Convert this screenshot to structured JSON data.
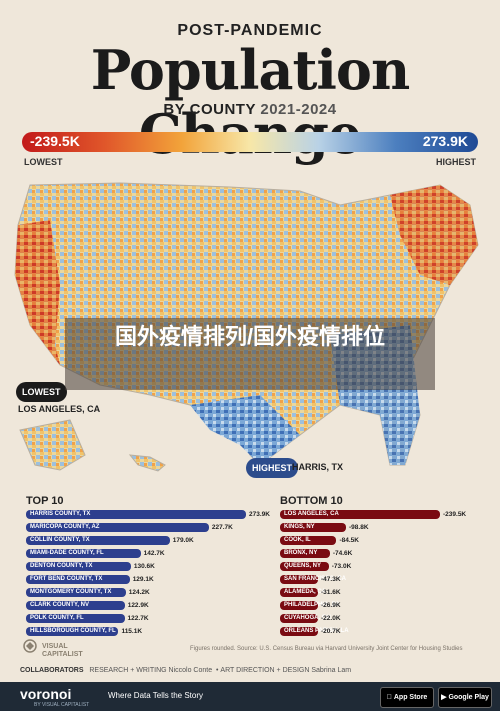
{
  "header": {
    "kicker": "POST-PANDEMIC",
    "title": "Population Change",
    "subtitle_prefix": "BY COUNTY",
    "subtitle_years": "2021-2024"
  },
  "scale": {
    "min_label": "-239.5K",
    "max_label": "273.9K",
    "low_caption": "LOWEST",
    "high_caption": "HIGHEST",
    "colors": {
      "low": "#c21a1a",
      "mid": "#f7e7a8",
      "high": "#1f4a95"
    }
  },
  "map": {
    "lowest_pin": "LOWEST",
    "lowest_place": "LOS ANGELES, CA",
    "highest_pin": "HIGHEST",
    "highest_place": "HARRIS, TX"
  },
  "overlay": {
    "text": "国外疫情排列/国外疫情排位"
  },
  "top10": {
    "title": "TOP 10",
    "items": [
      {
        "name": "HARRIS COUNTY, TX",
        "value": "273.9K",
        "num": 273.9
      },
      {
        "name": "MARICOPA COUNTY, AZ",
        "value": "227.7K",
        "num": 227.7
      },
      {
        "name": "COLLIN COUNTY, TX",
        "value": "179.0K",
        "num": 179.0
      },
      {
        "name": "MIAMI-DADE COUNTY, FL",
        "value": "142.7K",
        "num": 142.7
      },
      {
        "name": "DENTON COUNTY, TX",
        "value": "130.6K",
        "num": 130.6
      },
      {
        "name": "FORT BEND COUNTY, TX",
        "value": "129.1K",
        "num": 129.1
      },
      {
        "name": "MONTGOMERY COUNTY, TX",
        "value": "124.2K",
        "num": 124.2
      },
      {
        "name": "CLARK COUNTY, NV",
        "value": "122.9K",
        "num": 122.9
      },
      {
        "name": "POLK COUNTY, FL",
        "value": "122.7K",
        "num": 122.7
      },
      {
        "name": "HILLSBOROUGH COUNTY, FL",
        "value": "115.1K",
        "num": 115.1
      }
    ]
  },
  "bottom10": {
    "title": "BOTTOM 10",
    "items": [
      {
        "name": "LOS ANGELES, CA",
        "value": "-239.5K",
        "num": 239.5
      },
      {
        "name": "KINGS, NY",
        "value": "-98.8K",
        "num": 98.8
      },
      {
        "name": "COOK, IL",
        "value": "-84.5K",
        "num": 84.5
      },
      {
        "name": "BRONX, NY",
        "value": "-74.6K",
        "num": 74.6
      },
      {
        "name": "QUEENS, NY",
        "value": "-73.0K",
        "num": 73.0
      },
      {
        "name": "SAN FRANCISCO, CA",
        "value": "-47.3K",
        "num": 47.3
      },
      {
        "name": "ALAMEDA, CA",
        "value": "-31.6K",
        "num": 31.6
      },
      {
        "name": "PHILADELPHIA, PA",
        "value": "-26.9K",
        "num": 26.9
      },
      {
        "name": "CUYAHOGA, OH",
        "value": "-22.0K",
        "num": 22.0
      },
      {
        "name": "ORLEANS PARISH, LA",
        "value": "-20.7K",
        "num": 20.7
      }
    ]
  },
  "source": "Figures rounded. Source: U.S. Census Bureau via Harvard University Joint Center for Housing Studies",
  "brand": {
    "vc_line1": "VISUAL",
    "vc_line2": "CAPITALIST"
  },
  "collaborators": {
    "label": "COLLABORATORS",
    "research_label": "RESEARCH + WRITING",
    "research_name": "Niccolo Conte",
    "art_label": "ART DIRECTION + DESIGN",
    "art_name": "Sabrina Lam"
  },
  "footer": {
    "logo": "voronoi",
    "logo_sub": "BY VISUAL CAPITALIST",
    "tagline": "Where Data Tells the Story",
    "app_store": "App Store",
    "google_play": "Google Play"
  }
}
